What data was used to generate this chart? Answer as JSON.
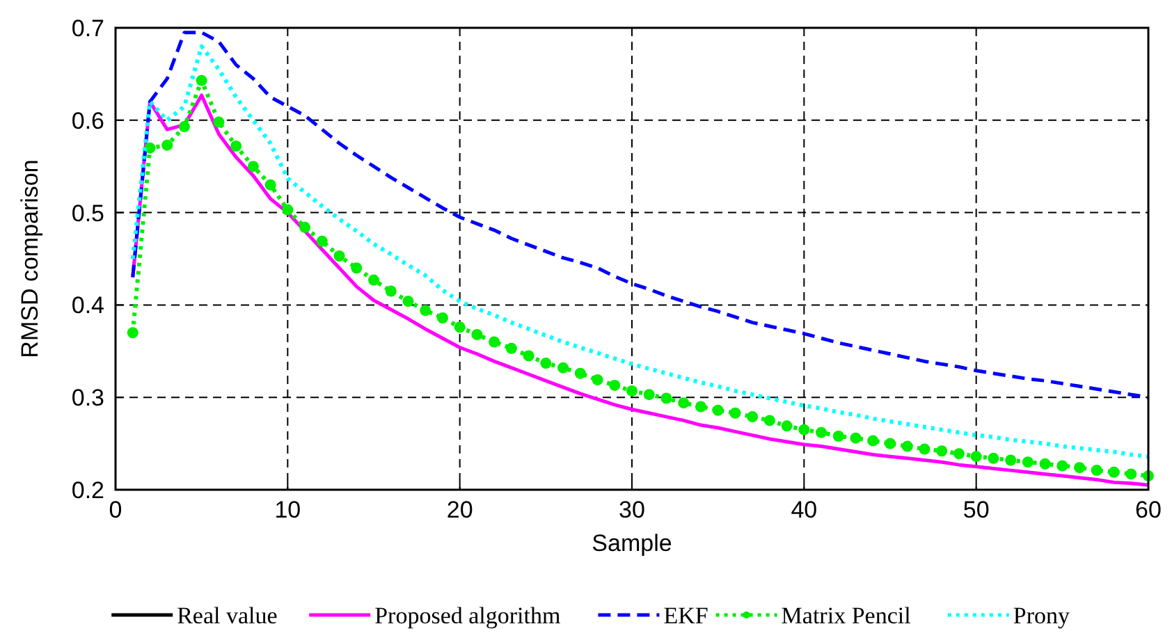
{
  "chart_data": {
    "type": "line",
    "xlabel": "Sample",
    "ylabel": "RMSD comparison",
    "x": [
      1,
      2,
      3,
      4,
      5,
      6,
      7,
      8,
      9,
      10,
      11,
      12,
      13,
      14,
      15,
      16,
      17,
      18,
      19,
      20,
      21,
      22,
      23,
      24,
      25,
      26,
      27,
      28,
      29,
      30,
      31,
      32,
      33,
      34,
      35,
      36,
      37,
      38,
      39,
      40,
      41,
      42,
      43,
      44,
      45,
      46,
      47,
      48,
      49,
      50,
      51,
      52,
      53,
      54,
      55,
      56,
      57,
      58,
      59,
      60
    ],
    "xlim": [
      0,
      60
    ],
    "xticks": [
      0,
      10,
      20,
      30,
      40,
      50,
      60
    ],
    "ylim": [
      0.2,
      0.7
    ],
    "yticks": [
      0.2,
      0.3,
      0.4,
      0.5,
      0.6,
      0.7
    ],
    "grid": true,
    "legend": "bottom",
    "series": [
      {
        "name": "Real value",
        "color": "#000000",
        "line_style": "solid",
        "marker": "none",
        "values": [
          null,
          null,
          null,
          null,
          null,
          null,
          null,
          null,
          null,
          null,
          null,
          null,
          null,
          null,
          null,
          null,
          null,
          null,
          null,
          null,
          null,
          null,
          null,
          null,
          null,
          null,
          null,
          null,
          null,
          null,
          null,
          null,
          null,
          null,
          null,
          null,
          null,
          null,
          null,
          null,
          null,
          null,
          null,
          null,
          null,
          null,
          null,
          null,
          null,
          null,
          null,
          null,
          null,
          null,
          null,
          null,
          null,
          null,
          null,
          null
        ]
      },
      {
        "name": "Proposed algorithm",
        "color": "#ff00ff",
        "line_style": "solid",
        "marker": "none",
        "values": [
          0.43,
          0.62,
          0.59,
          0.595,
          0.627,
          0.585,
          0.56,
          0.54,
          0.515,
          0.5,
          0.48,
          0.46,
          0.44,
          0.42,
          0.405,
          0.395,
          0.385,
          0.374,
          0.364,
          0.354,
          0.347,
          0.339,
          0.332,
          0.325,
          0.318,
          0.311,
          0.304,
          0.298,
          0.292,
          0.287,
          0.283,
          0.279,
          0.275,
          0.27,
          0.267,
          0.263,
          0.259,
          0.255,
          0.252,
          0.249,
          0.247,
          0.244,
          0.241,
          0.238,
          0.236,
          0.234,
          0.232,
          0.23,
          0.227,
          0.225,
          0.223,
          0.221,
          0.219,
          0.217,
          0.215,
          0.213,
          0.211,
          0.208,
          0.207,
          0.205
        ]
      },
      {
        "name": "EKF",
        "color": "#0000ff",
        "line_style": "dashed",
        "marker": "none",
        "values": [
          0.43,
          0.62,
          0.645,
          0.695,
          0.695,
          0.685,
          0.66,
          0.645,
          0.625,
          0.615,
          0.605,
          0.59,
          0.575,
          0.562,
          0.55,
          0.538,
          0.527,
          0.516,
          0.505,
          0.495,
          0.488,
          0.481,
          0.472,
          0.465,
          0.458,
          0.451,
          0.446,
          0.44,
          0.431,
          0.423,
          0.417,
          0.41,
          0.404,
          0.398,
          0.393,
          0.387,
          0.381,
          0.377,
          0.373,
          0.369,
          0.364,
          0.359,
          0.355,
          0.351,
          0.347,
          0.343,
          0.339,
          0.336,
          0.333,
          0.329,
          0.326,
          0.323,
          0.32,
          0.318,
          0.315,
          0.312,
          0.309,
          0.306,
          0.303,
          0.3
        ]
      },
      {
        "name": "Matrix Pencil",
        "color": "#00ee00",
        "line_style": "dotted",
        "marker": "circle",
        "values": [
          0.37,
          0.57,
          0.573,
          0.593,
          0.643,
          0.598,
          0.572,
          0.55,
          0.53,
          0.503,
          0.484,
          0.469,
          0.453,
          0.44,
          0.427,
          0.415,
          0.404,
          0.394,
          0.386,
          0.376,
          0.368,
          0.36,
          0.353,
          0.345,
          0.337,
          0.332,
          0.326,
          0.319,
          0.313,
          0.307,
          0.303,
          0.299,
          0.294,
          0.29,
          0.286,
          0.283,
          0.279,
          0.275,
          0.269,
          0.265,
          0.262,
          0.258,
          0.256,
          0.253,
          0.25,
          0.247,
          0.244,
          0.242,
          0.239,
          0.236,
          0.234,
          0.232,
          0.23,
          0.228,
          0.226,
          0.224,
          0.221,
          0.219,
          0.217,
          0.215
        ]
      },
      {
        "name": "Prony",
        "color": "#00ffff",
        "line_style": "dotted",
        "marker": "none",
        "values": [
          0.45,
          0.62,
          0.6,
          0.615,
          0.68,
          0.655,
          0.625,
          0.6,
          0.575,
          0.537,
          0.522,
          0.507,
          0.493,
          0.48,
          0.466,
          0.455,
          0.443,
          0.432,
          0.416,
          0.404,
          0.396,
          0.389,
          0.381,
          0.374,
          0.367,
          0.36,
          0.354,
          0.348,
          0.342,
          0.336,
          0.331,
          0.326,
          0.321,
          0.316,
          0.312,
          0.307,
          0.303,
          0.299,
          0.295,
          0.291,
          0.288,
          0.284,
          0.281,
          0.277,
          0.274,
          0.271,
          0.268,
          0.265,
          0.262,
          0.259,
          0.257,
          0.254,
          0.252,
          0.25,
          0.247,
          0.245,
          0.243,
          0.241,
          0.238,
          0.236
        ]
      }
    ]
  }
}
